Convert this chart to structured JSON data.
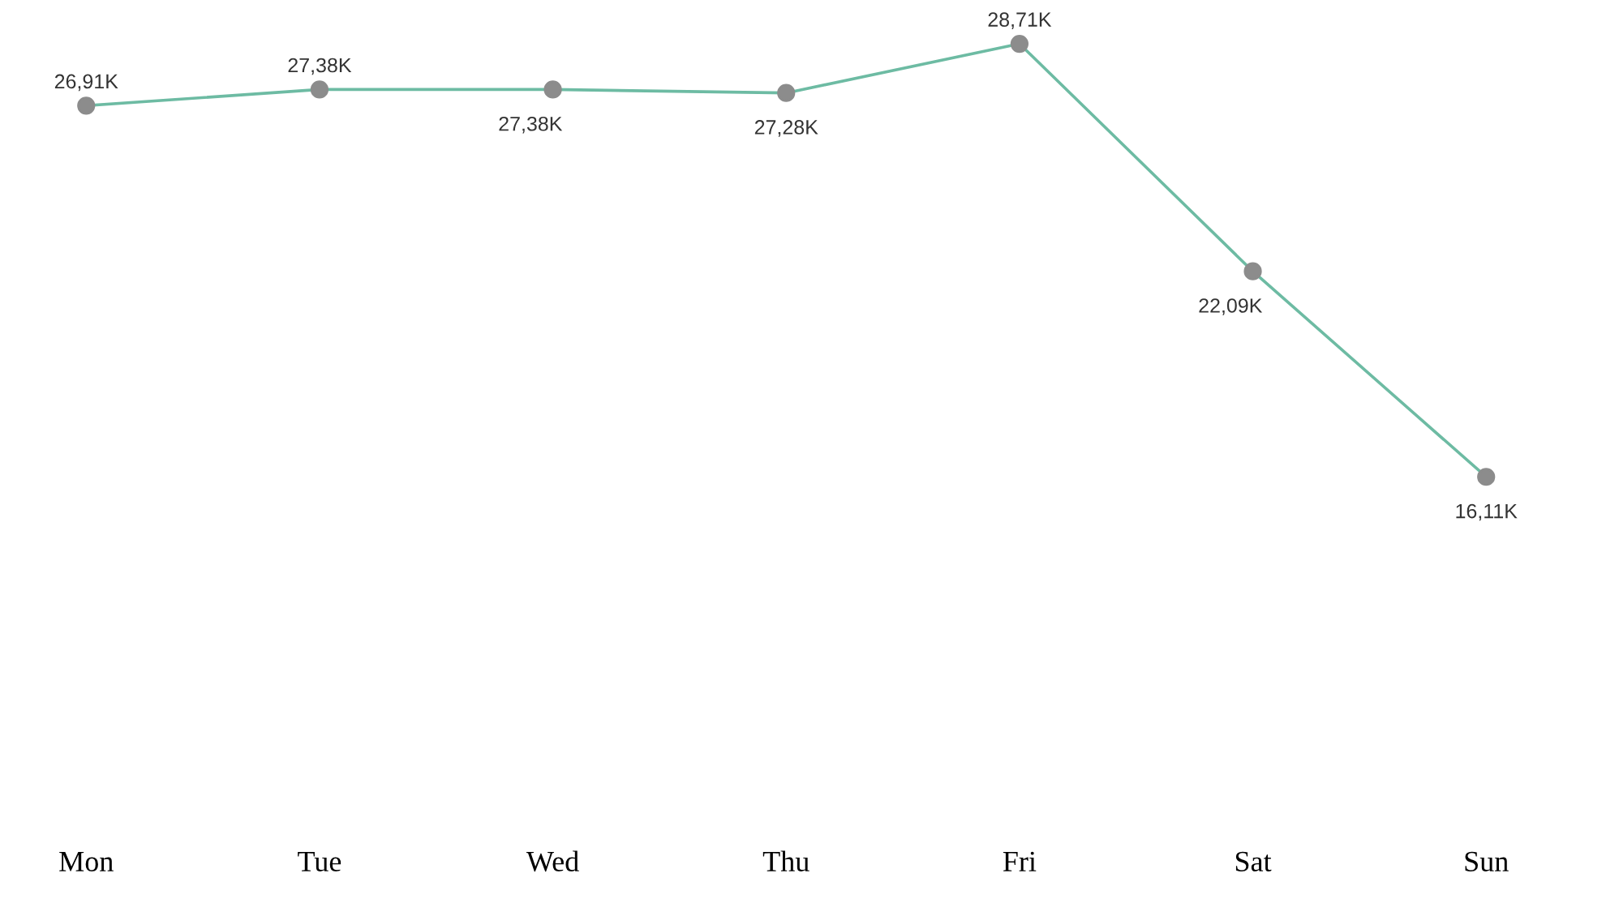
{
  "chart_data": {
    "type": "line",
    "categories": [
      "Mon",
      "Tue",
      "Wed",
      "Thu",
      "Fri",
      "Sat",
      "Sun"
    ],
    "series": [
      {
        "color": "#6dbba3",
        "values": [
          26.91,
          27.38,
          27.38,
          27.28,
          28.71,
          22.09,
          16.11
        ],
        "value_labels": [
          "26,91K",
          "27,38K",
          "27,38K",
          "27,28K",
          "28,71K",
          "22,09K",
          "16,11K"
        ]
      }
    ],
    "marker": "circle",
    "grid": false,
    "legend": false,
    "tick_labels": "x"
  }
}
